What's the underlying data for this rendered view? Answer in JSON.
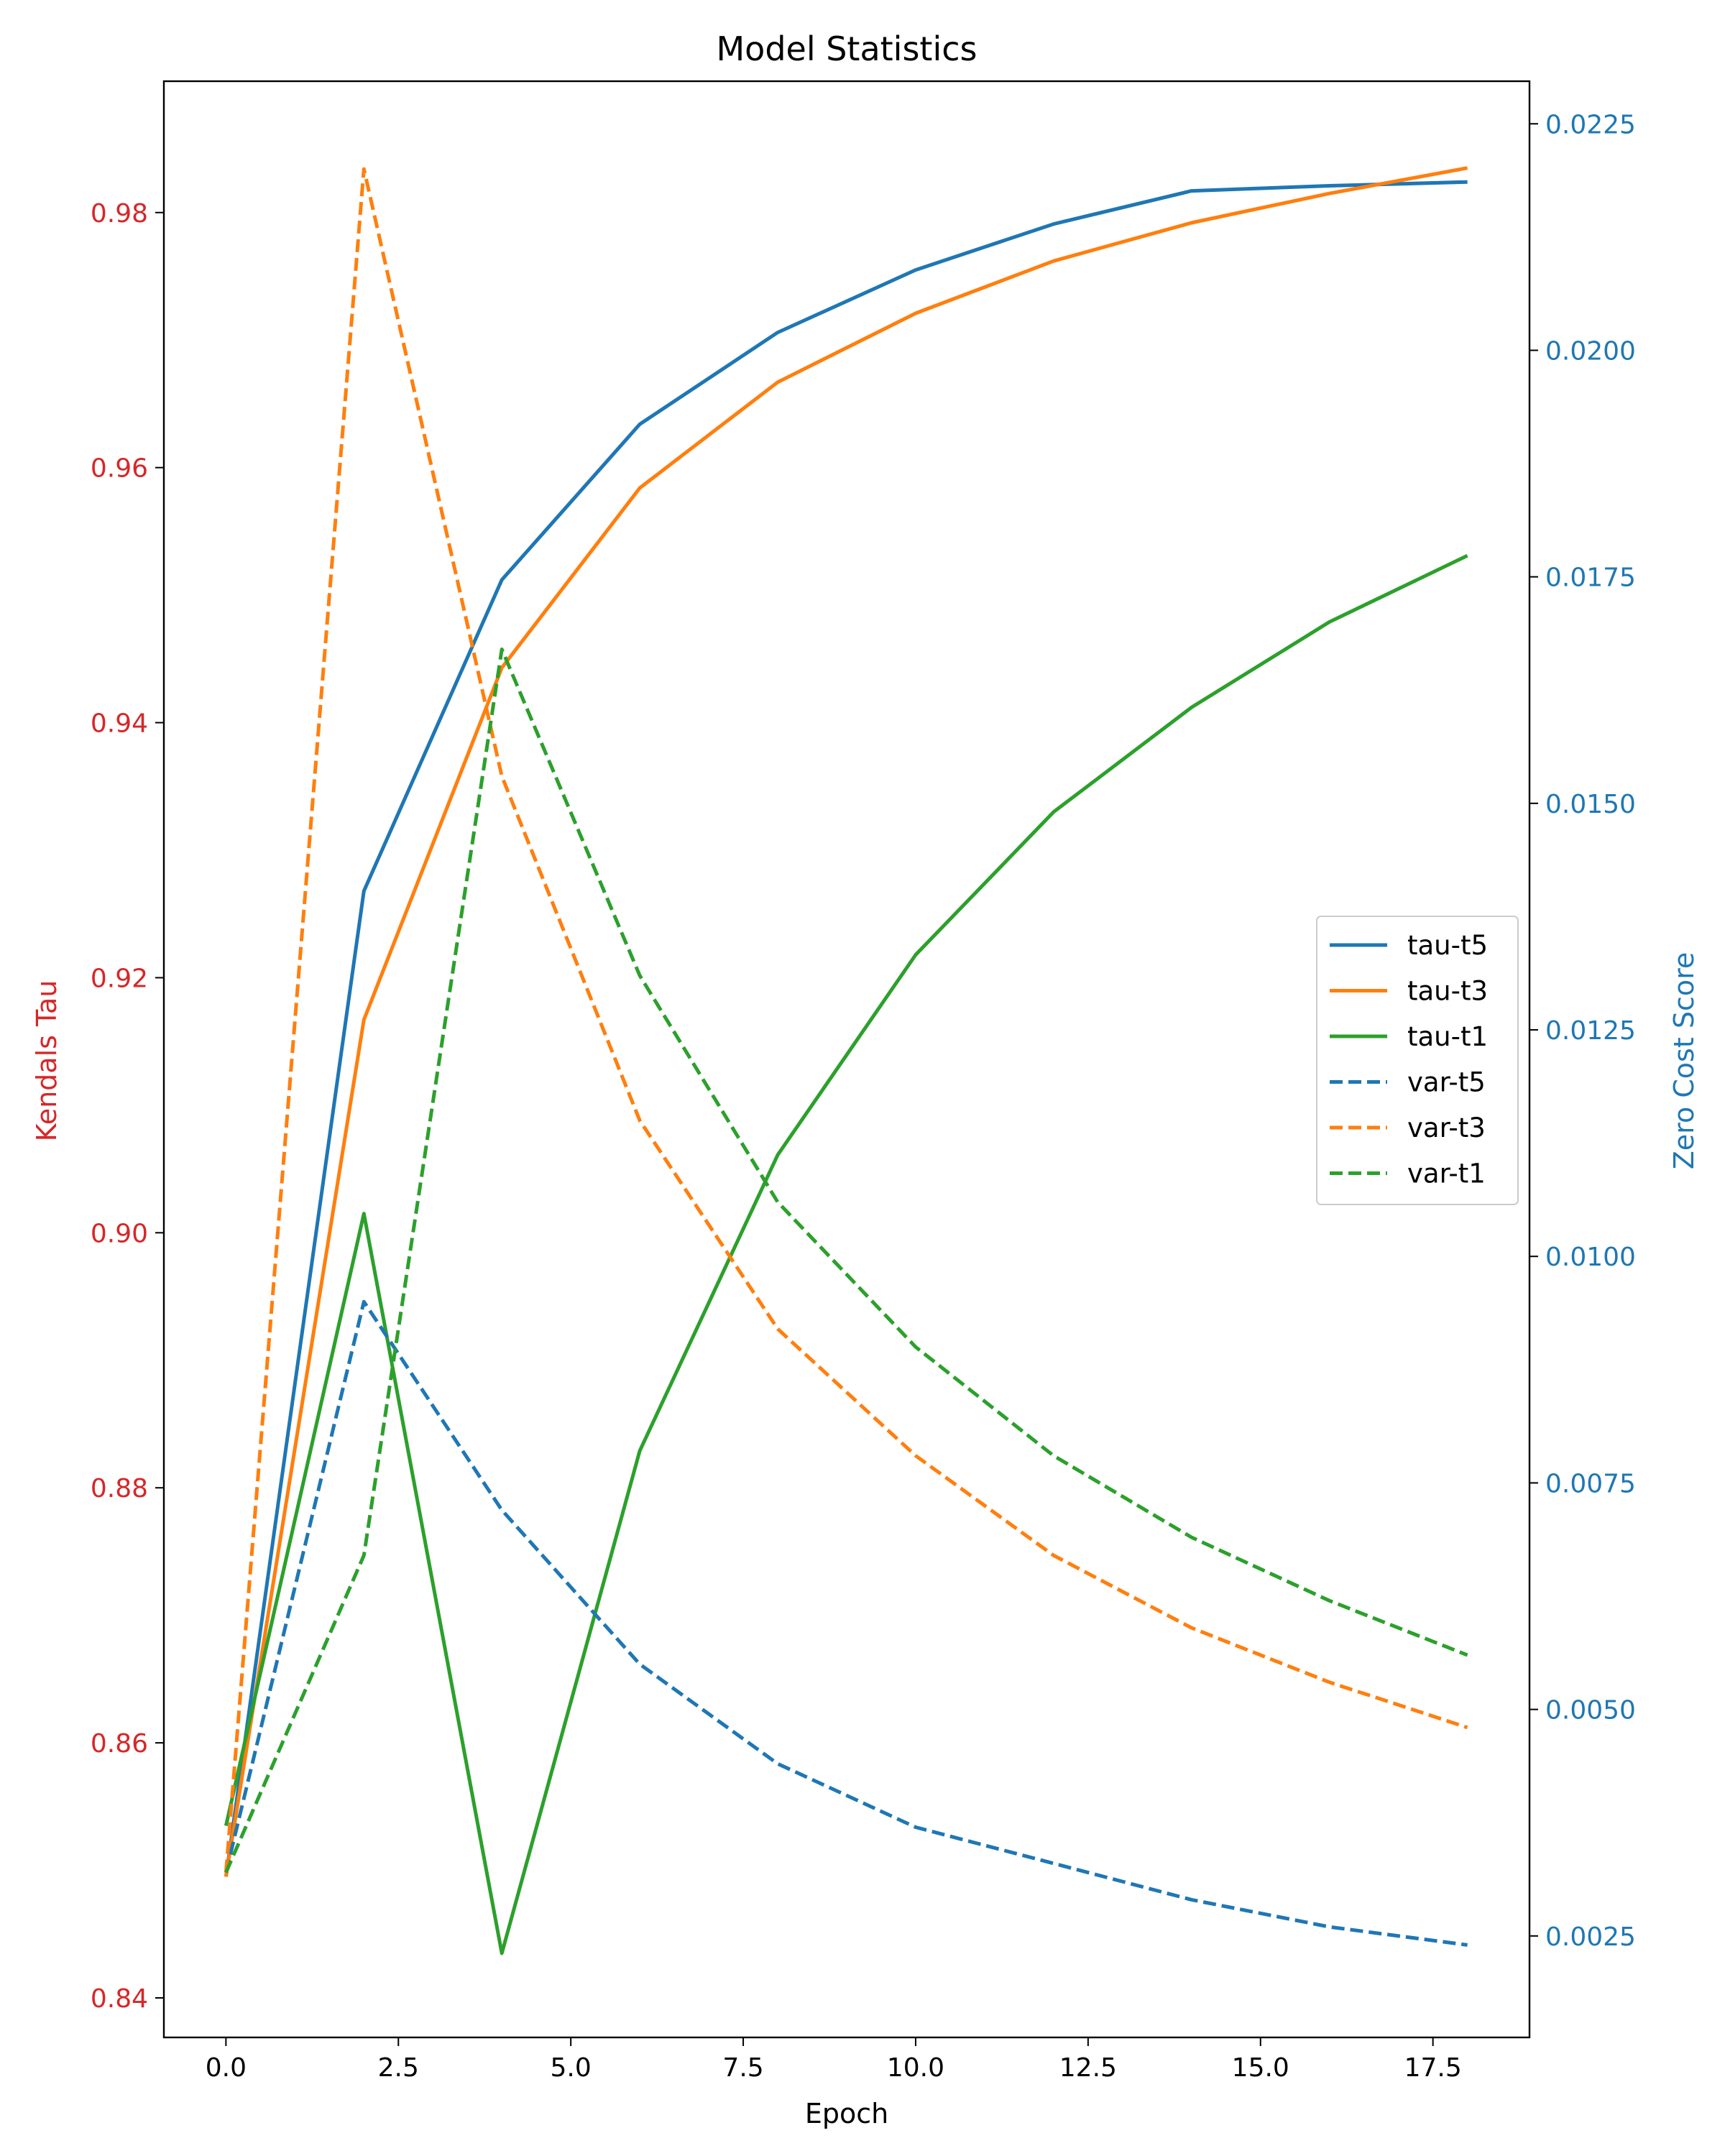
{
  "chart_data": {
    "type": "line",
    "title": "Model Statistics",
    "xlabel": "Epoch",
    "ylabel_left": "Kendals Tau",
    "ylabel_right": "Zero Cost Score",
    "xlim": [
      -0.9,
      18.9
    ],
    "ylim_left": [
      0.8369,
      0.9903
    ],
    "ylim_right": [
      0.00138,
      0.02297
    ],
    "xticks": [
      0.0,
      2.5,
      5.0,
      7.5,
      10.0,
      12.5,
      15.0,
      17.5
    ],
    "xtick_labels": [
      "0.0",
      "2.5",
      "5.0",
      "7.5",
      "10.0",
      "12.5",
      "15.0",
      "17.5"
    ],
    "yticks_left": [
      0.84,
      0.86,
      0.88,
      0.9,
      0.92,
      0.94,
      0.96,
      0.98
    ],
    "ytick_labels_left": [
      "0.84",
      "0.86",
      "0.88",
      "0.90",
      "0.92",
      "0.94",
      "0.96",
      "0.98"
    ],
    "yticks_right": [
      0.0025,
      0.005,
      0.0075,
      0.01,
      0.0125,
      0.015,
      0.0175,
      0.02,
      0.0225
    ],
    "ytick_labels_right": [
      "0.0025",
      "0.0050",
      "0.0075",
      "0.0100",
      "0.0125",
      "0.0150",
      "0.0175",
      "0.0200",
      "0.0225"
    ],
    "x": [
      0,
      2,
      4,
      6,
      8,
      10,
      12,
      14,
      16,
      18
    ],
    "series": [
      {
        "name": "tau-t5",
        "axis": "left",
        "style": "solid",
        "color": "#1f77b4",
        "values": [
          0.8495,
          0.9268,
          0.9512,
          0.9634,
          0.9706,
          0.9755,
          0.9791,
          0.9817,
          0.9821,
          0.9824
        ]
      },
      {
        "name": "tau-t3",
        "axis": "left",
        "style": "solid",
        "color": "#ff7f0e",
        "values": [
          0.8495,
          0.9167,
          0.9443,
          0.9584,
          0.9667,
          0.9721,
          0.9762,
          0.9792,
          0.9815,
          0.9835
        ]
      },
      {
        "name": "tau-t1",
        "axis": "left",
        "style": "solid",
        "color": "#2ca02c",
        "values": [
          0.8535,
          0.9015,
          0.8435,
          0.8829,
          0.9061,
          0.9218,
          0.933,
          0.9412,
          0.9479,
          0.9531
        ]
      },
      {
        "name": "var-t5",
        "axis": "right",
        "style": "dashed",
        "color": "#1f77b4",
        "values": [
          0.0032,
          0.0095,
          0.0072,
          0.0055,
          0.0044,
          0.0037,
          0.0033,
          0.0029,
          0.0026,
          0.0024
        ]
      },
      {
        "name": "var-t3",
        "axis": "right",
        "style": "dashed",
        "color": "#ff7f0e",
        "values": [
          0.0032,
          0.022,
          0.0153,
          0.0115,
          0.0092,
          0.0078,
          0.0067,
          0.0059,
          0.0053,
          0.0048
        ]
      },
      {
        "name": "var-t1",
        "axis": "right",
        "style": "dashed",
        "color": "#2ca02c",
        "values": [
          0.0032,
          0.0067,
          0.0167,
          0.0131,
          0.0106,
          0.009,
          0.0078,
          0.0069,
          0.0062,
          0.0056
        ]
      }
    ],
    "legend_position": "center-right",
    "grid": false,
    "left_axis_color": "#d62728",
    "right_axis_color": "#1f77b4"
  }
}
